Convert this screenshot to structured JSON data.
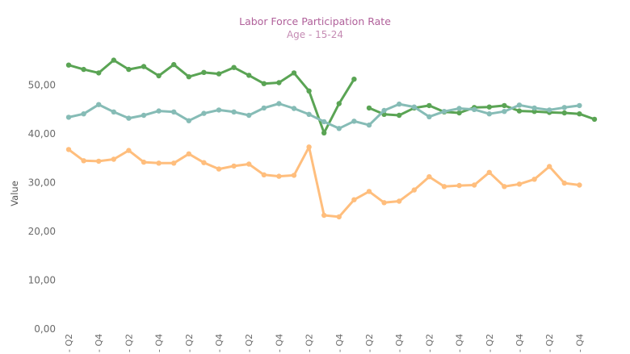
{
  "chart_data": {
    "type": "line",
    "title": "Labor Force Participation Rate",
    "subtitle": "Age - 15-24",
    "ylabel": "Value",
    "ylim": [
      0,
      56
    ],
    "yticks": [
      0,
      10,
      20,
      30,
      40,
      50
    ],
    "ytick_labels": [
      "0,00",
      "10,00",
      "20,00",
      "30,00",
      "40,00",
      "50,00"
    ],
    "x": [
      0,
      1,
      2,
      3,
      4,
      5,
      6,
      7,
      8,
      9,
      10,
      11,
      12,
      13,
      14,
      15,
      16,
      17,
      18,
      19,
      20,
      21,
      22,
      23,
      24,
      25,
      26,
      27,
      28,
      29,
      30,
      31,
      32,
      33,
      34,
      35
    ],
    "x_tick_labels": [
      "- Q2",
      "- Q4",
      "- Q2",
      "- Q4",
      "- Q2",
      "- Q4",
      "- Q2",
      "- Q4",
      "- Q2",
      "- Q4",
      "- Q2",
      "- Q4",
      "- Q2",
      "- Q4",
      "- Q2",
      "- Q4",
      "- Q2",
      "- Q4"
    ],
    "grid": false,
    "series": [
      {
        "color": "#5aa454",
        "segments": [
          {
            "x": [
              0,
              1,
              2,
              3,
              4,
              5,
              6,
              7,
              8,
              9,
              10,
              11,
              12,
              13,
              14,
              15,
              16,
              17,
              18,
              19
            ],
            "values": [
              54.1,
              53.2,
              52.5,
              55.1,
              53.2,
              53.8,
              51.9,
              54.2,
              51.7,
              52.6,
              52.3,
              53.6,
              52.0,
              50.3,
              50.5,
              52.5,
              48.8,
              40.2,
              46.2,
              51.2
            ]
          },
          {
            "x": [
              20,
              21,
              22,
              23,
              24,
              25,
              26,
              27,
              28,
              29,
              30,
              31,
              32,
              33,
              34,
              35
            ],
            "values": [
              45.3,
              44.0,
              43.8,
              45.3,
              45.8,
              44.5,
              44.3,
              45.4,
              45.5,
              45.8,
              44.7,
              44.6,
              44.4,
              44.3,
              44.1,
              43.0
            ]
          }
        ]
      },
      {
        "color": "#86bcb6",
        "segments": [
          {
            "x": [
              0,
              1,
              2,
              3,
              4,
              5,
              6,
              7,
              8,
              9,
              10,
              11,
              12,
              13,
              14,
              15,
              16,
              17,
              18,
              19,
              20,
              21,
              22,
              23,
              24,
              25,
              26,
              27,
              28,
              29,
              30,
              31,
              32,
              33,
              34
            ],
            "values": [
              43.4,
              44.1,
              46.0,
              44.5,
              43.2,
              43.8,
              44.7,
              44.5,
              42.7,
              44.2,
              44.9,
              44.5,
              43.8,
              45.3,
              46.2,
              45.2,
              44.0,
              42.5,
              41.1,
              42.6,
              41.8,
              44.8,
              46.1,
              45.5,
              43.5,
              44.6,
              45.2,
              45.0,
              44.1,
              44.6,
              45.9,
              45.3,
              44.9,
              45.4,
              45.8
            ]
          }
        ]
      },
      {
        "color": "#ffbe7d",
        "segments": [
          {
            "x": [
              0,
              1,
              2,
              3,
              4,
              5,
              6,
              7,
              8,
              9,
              10,
              11,
              12,
              13,
              14,
              15,
              16,
              17,
              18,
              19,
              20,
              21,
              22,
              23,
              24,
              25,
              26,
              27,
              28,
              29,
              30,
              31,
              32,
              33,
              34
            ],
            "values": [
              36.8,
              34.5,
              34.4,
              34.8,
              36.6,
              34.2,
              34.0,
              34.0,
              35.9,
              34.1,
              32.8,
              33.4,
              33.8,
              31.6,
              31.3,
              31.5,
              37.3,
              23.3,
              23.0,
              26.5,
              28.2,
              25.9,
              26.2,
              28.5,
              31.2,
              29.2,
              29.4,
              29.5,
              32.1,
              29.2,
              29.7,
              30.7,
              33.3,
              29.9,
              29.5
            ]
          }
        ]
      }
    ]
  }
}
